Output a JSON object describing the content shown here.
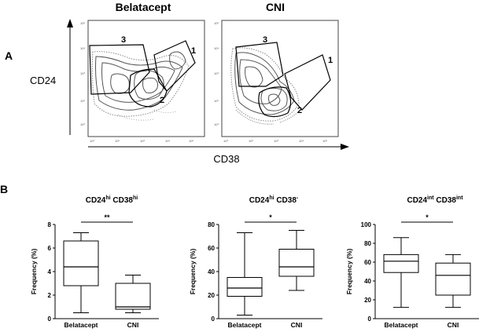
{
  "panels": {
    "a_label": "A",
    "b_label": "B"
  },
  "flow": {
    "titles": [
      "Belatacept",
      "CNI"
    ],
    "ylabel": "CD24",
    "xlabel": "CD38",
    "gate_labels_left": [
      "3",
      "1",
      "2"
    ],
    "gate_labels_right": [
      "3",
      "1",
      "2"
    ],
    "tick_labels": [
      "10³",
      "10²",
      "10³",
      "10⁴",
      "10⁵"
    ]
  },
  "chart_data": [
    {
      "type": "box",
      "title_main": "CD24",
      "title_sup1": "hi",
      "title_main2": " CD38",
      "title_sup2": "hi",
      "ylabel": "Frequency (%)",
      "ylim": [
        0,
        8
      ],
      "yticks": [
        0,
        2,
        4,
        6,
        8
      ],
      "categories": [
        "Belatacept",
        "CNI"
      ],
      "boxes": [
        {
          "min": 0.5,
          "q1": 2.8,
          "median": 4.4,
          "q3": 6.6,
          "max": 7.3
        },
        {
          "min": 0.5,
          "q1": 0.8,
          "median": 1.0,
          "q3": 3.0,
          "max": 3.7
        }
      ],
      "significance": "**"
    },
    {
      "type": "box",
      "title_main": "CD24",
      "title_sup1": "hi",
      "title_main2": " CD38",
      "title_sup2": "-",
      "ylabel": "Frequency (%)",
      "ylim": [
        0,
        80
      ],
      "yticks": [
        0,
        20,
        40,
        60,
        80
      ],
      "categories": [
        "Belatacept",
        "CNI"
      ],
      "boxes": [
        {
          "min": 3,
          "q1": 19,
          "median": 26,
          "q3": 35,
          "max": 73
        },
        {
          "min": 24,
          "q1": 36,
          "median": 44,
          "q3": 59,
          "max": 75
        }
      ],
      "significance": "*"
    },
    {
      "type": "box",
      "title_main": "CD24",
      "title_sup1": "int",
      "title_main2": " CD38",
      "title_sup2": "int",
      "ylabel": "Frequency (%)",
      "ylim": [
        0,
        100
      ],
      "yticks": [
        0,
        20,
        40,
        60,
        80,
        100
      ],
      "categories": [
        "Belatacept",
        "CNI"
      ],
      "boxes": [
        {
          "min": 12,
          "q1": 49,
          "median": 61,
          "q3": 68,
          "max": 86
        },
        {
          "min": 12,
          "q1": 25,
          "median": 46,
          "q3": 59,
          "max": 68
        }
      ],
      "significance": "*"
    }
  ]
}
